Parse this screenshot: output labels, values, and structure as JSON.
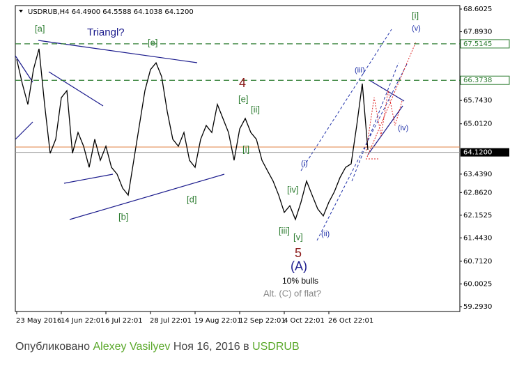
{
  "chart_data": {
    "type": "line",
    "title": "USDRUB,H4  64.4900 64.5588 64.1038 64.1200",
    "color": "#000000",
    "categories": [
      "23 May 2016",
      null,
      null,
      null,
      null,
      null,
      null,
      null,
      "14 Jun 22:01",
      null,
      null,
      null,
      null,
      null,
      null,
      null,
      "6 Jul 22:01",
      null,
      null,
      null,
      null,
      null,
      null,
      null,
      "28 Jul 22:01",
      null,
      null,
      null,
      null,
      null,
      null,
      null,
      "19 Aug 22:01",
      null,
      null,
      null,
      null,
      null,
      null,
      null,
      "12 Sep 22:01",
      null,
      null,
      null,
      null,
      null,
      null,
      null,
      "4 Oct 22:01",
      null,
      null,
      null,
      null,
      null,
      null,
      null,
      "26 Oct 22:01",
      null,
      null,
      null,
      null,
      null,
      null,
      null
    ],
    "values": [
      67.03,
      66.27,
      65.62,
      66.71,
      67.36,
      65.62,
      64.09,
      64.53,
      65.83,
      66.05,
      64.09,
      64.74,
      64.31,
      63.65,
      64.53,
      63.87,
      64.31,
      63.65,
      63.44,
      63.0,
      62.78,
      63.87,
      64.96,
      66.05,
      66.71,
      66.92,
      66.49,
      65.4,
      64.53,
      64.31,
      64.74,
      63.87,
      63.65,
      64.53,
      64.96,
      64.74,
      65.62,
      65.18,
      64.74,
      63.87,
      64.85,
      65.18,
      64.74,
      64.53,
      63.87,
      63.54,
      63.22,
      62.78,
      62.24,
      62.45,
      62.02,
      62.56,
      63.22,
      62.78,
      62.35,
      62.13,
      62.56,
      62.89,
      63.33,
      63.65,
      63.76,
      64.96,
      66.27,
      64.2
    ],
    "ylim": [
      59.293,
      68.6025
    ],
    "yticks": [
      68.6025,
      {
        "value": 67.893,
        "label": "67.8930"
      },
      {
        "value": 65.743,
        "label": "65.7430"
      },
      {
        "value": 65.012,
        "label": "65.0120"
      },
      {
        "value": 63.439,
        "label": "63.4390"
      },
      {
        "value": 62.862,
        "label": "62.8620"
      },
      62.1525,
      {
        "value": 61.443,
        "label": "61.4430"
      },
      {
        "value": 60.712,
        "label": "60.7120"
      },
      60.0025,
      {
        "value": 59.293,
        "label": "59.2930"
      }
    ],
    "levels": [
      67.5145,
      66.3738
    ],
    "level_color": "#2e7d32",
    "current_price": {
      "value": 64.12,
      "label": "64.1200"
    },
    "annotations": [
      "Triangl?",
      "[a]",
      "[e]",
      "[b]",
      "[d]",
      "4",
      "[e]",
      "[ii]",
      "[i]",
      "[iii]",
      "[iv]",
      "[v]",
      "5",
      "(A)",
      "10% bulls",
      "Alt. (C) of flat?",
      "(i)",
      "(ii)",
      "(iii)",
      "(iv)",
      "[i]",
      "(v)"
    ]
  },
  "footer": {
    "prefix": "Опубликовано",
    "author": "Alexey Vasilyev",
    "date": "Ноя 16, 2016 в",
    "symbol": "USDRUB"
  }
}
